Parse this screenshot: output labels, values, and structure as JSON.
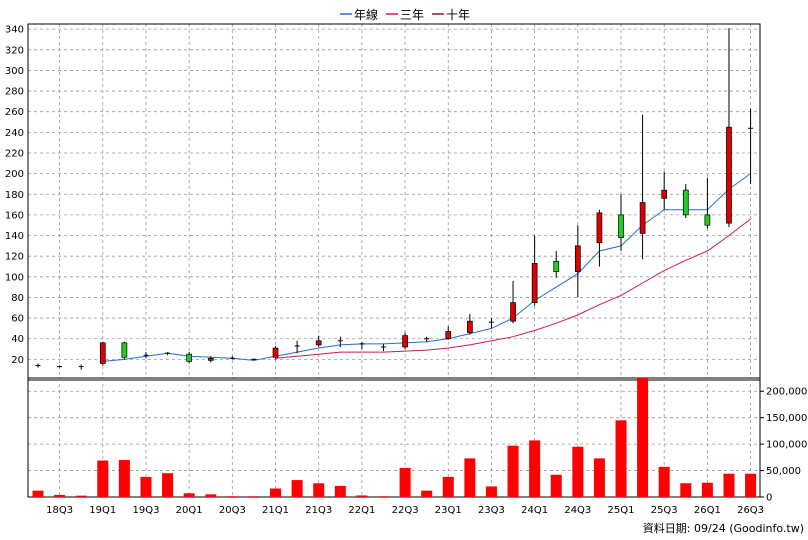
{
  "legend": [
    {
      "label": "年線",
      "color": "#1e6fd9"
    },
    {
      "label": "三年",
      "color": "#cc1a5a"
    },
    {
      "label": "十年",
      "color": "#7a1a4a"
    }
  ],
  "footer": "資料日期: 09/24  (Goodinfo.tw)",
  "colors": {
    "up": "#dd0000",
    "down": "#22cc22",
    "volume": "#ff0000",
    "grid": "#999999"
  },
  "chart_data": [
    {
      "type": "candlestick",
      "price_ylim": [
        0,
        345
      ],
      "price_yticks": [
        20,
        40,
        60,
        80,
        100,
        120,
        140,
        160,
        180,
        200,
        220,
        240,
        260,
        280,
        300,
        320,
        340
      ],
      "x_labels": [
        "18Q3",
        "19Q1",
        "19Q3",
        "20Q1",
        "20Q3",
        "21Q1",
        "21Q3",
        "22Q1",
        "22Q3",
        "23Q1",
        "23Q3",
        "24Q1",
        "24Q3",
        "25Q1",
        "25Q3",
        "26Q1",
        "26Q3"
      ],
      "candles": [
        {
          "o": 14,
          "h": 16,
          "l": 12,
          "c": 14
        },
        {
          "o": 13,
          "h": 14,
          "l": 12,
          "c": 13
        },
        {
          "o": 13,
          "h": 15,
          "l": 10,
          "c": 13
        },
        {
          "o": 16,
          "h": 37,
          "l": 14,
          "c": 36
        },
        {
          "o": 36,
          "h": 37,
          "l": 20,
          "c": 22
        },
        {
          "o": 23,
          "h": 27,
          "l": 21,
          "c": 24
        },
        {
          "o": 25,
          "h": 27,
          "l": 24,
          "c": 26
        },
        {
          "o": 25,
          "h": 27,
          "l": 16,
          "c": 18
        },
        {
          "o": 19,
          "h": 23,
          "l": 17,
          "c": 21
        },
        {
          "o": 21,
          "h": 23,
          "l": 20,
          "c": 21
        },
        {
          "o": 20,
          "h": 21,
          "l": 19,
          "c": 20
        },
        {
          "o": 22,
          "h": 33,
          "l": 20,
          "c": 31
        },
        {
          "o": 32,
          "h": 38,
          "l": 26,
          "c": 33
        },
        {
          "o": 34,
          "h": 43,
          "l": 32,
          "c": 38
        },
        {
          "o": 38,
          "h": 42,
          "l": 32,
          "c": 37
        },
        {
          "o": 35,
          "h": 37,
          "l": 30,
          "c": 34
        },
        {
          "o": 32,
          "h": 35,
          "l": 28,
          "c": 32
        },
        {
          "o": 32,
          "h": 46,
          "l": 30,
          "c": 43
        },
        {
          "o": 40,
          "h": 42,
          "l": 37,
          "c": 40
        },
        {
          "o": 40,
          "h": 52,
          "l": 39,
          "c": 47
        },
        {
          "o": 46,
          "h": 64,
          "l": 44,
          "c": 57
        },
        {
          "o": 56,
          "h": 60,
          "l": 50,
          "c": 56
        },
        {
          "o": 57,
          "h": 96,
          "l": 55,
          "c": 75
        },
        {
          "o": 75,
          "h": 140,
          "l": 72,
          "c": 113
        },
        {
          "o": 115,
          "h": 125,
          "l": 99,
          "c": 105
        },
        {
          "o": 105,
          "h": 150,
          "l": 80,
          "c": 130
        },
        {
          "o": 133,
          "h": 165,
          "l": 110,
          "c": 162
        },
        {
          "o": 160,
          "h": 180,
          "l": 125,
          "c": 138
        },
        {
          "o": 142,
          "h": 257,
          "l": 117,
          "c": 172
        },
        {
          "o": 176,
          "h": 202,
          "l": 165,
          "c": 184
        },
        {
          "o": 184,
          "h": 190,
          "l": 157,
          "c": 160
        },
        {
          "o": 160,
          "h": 196,
          "l": 147,
          "c": 150
        },
        {
          "o": 152,
          "h": 341,
          "l": 148,
          "c": 245
        },
        {
          "o": 244,
          "h": 263,
          "l": 190,
          "c": 244
        }
      ],
      "series": [
        {
          "name": "年線",
          "values": [
            null,
            null,
            null,
            18,
            20,
            23,
            26,
            23,
            22,
            21,
            19,
            23,
            27,
            31,
            34,
            35,
            35,
            36,
            37,
            40,
            45,
            50,
            60,
            77,
            90,
            103,
            125,
            130,
            150,
            165,
            165,
            165,
            185,
            200
          ]
        },
        {
          "name": "三年",
          "values": [
            null,
            null,
            null,
            null,
            null,
            null,
            null,
            null,
            null,
            null,
            null,
            21,
            23,
            25,
            27,
            27,
            27,
            28,
            29,
            31,
            34,
            38,
            42,
            48,
            55,
            63,
            73,
            82,
            94,
            106,
            116,
            125,
            140,
            156
          ]
        },
        {
          "name": "十年",
          "values": []
        }
      ],
      "volume_ylim": [
        0,
        225000
      ],
      "volume_yticks": [
        0,
        50000,
        100000,
        150000,
        200000
      ],
      "volume_ytick_labels": [
        "0",
        "50,000",
        "100,000",
        "150,000",
        "200,000"
      ],
      "volumes": [
        12000,
        4000,
        2500,
        69000,
        70000,
        38000,
        45000,
        7000,
        5000,
        1500,
        1500,
        16000,
        32000,
        26000,
        21000,
        3000,
        1500,
        55000,
        12000,
        38000,
        73000,
        20000,
        97000,
        107000,
        42000,
        95000,
        73000,
        145000,
        225000,
        57000,
        26000,
        27000,
        44000,
        44000
      ]
    }
  ]
}
